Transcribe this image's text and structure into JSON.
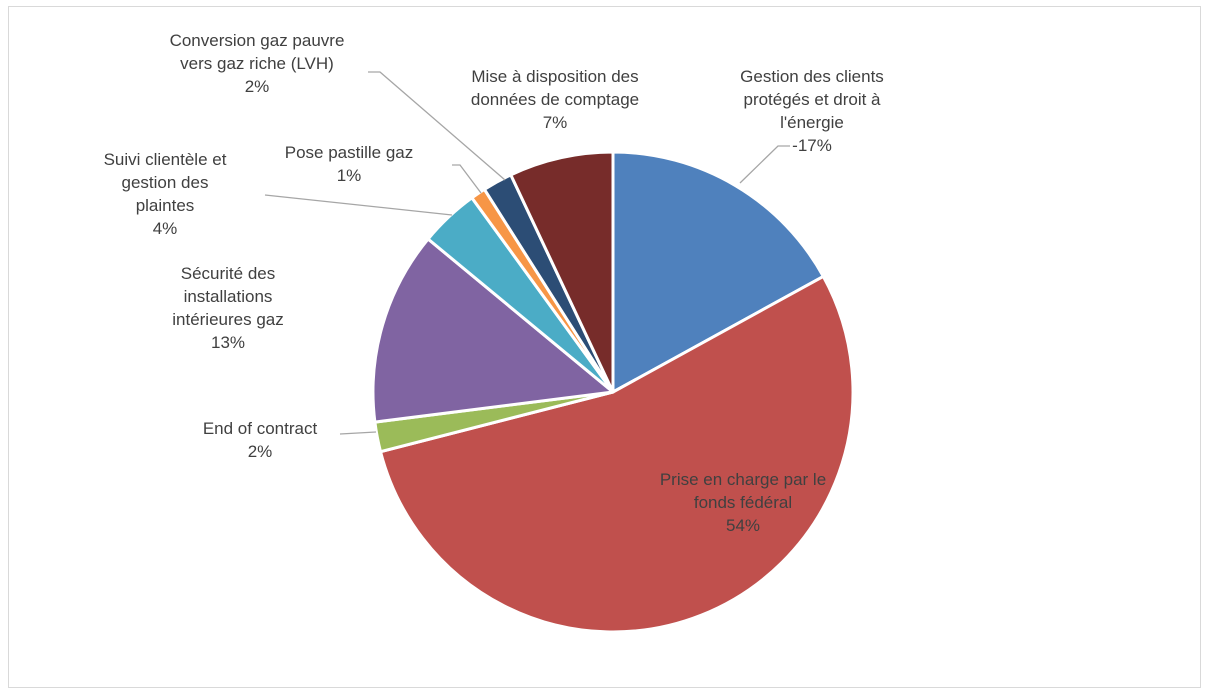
{
  "chart_data": {
    "type": "pie",
    "title": "",
    "start_angle_deg": 0,
    "direction": "clockwise",
    "slices": [
      {
        "name": "Gestion des clients protégés et droit à l'énergie",
        "value": 17,
        "label_lines": [
          "Gestion des clients",
          "protégés et droit à",
          "l'énergie",
          "-17%"
        ],
        "color": "#4f81bd"
      },
      {
        "name": "Prise en charge par le fonds fédéral",
        "value": 54,
        "label_lines": [
          "Prise en charge par le",
          "fonds fédéral",
          "54%"
        ],
        "color": "#c0504d"
      },
      {
        "name": "End of contract",
        "value": 2,
        "label_lines": [
          "End of contract",
          "2%"
        ],
        "color": "#9bbb59"
      },
      {
        "name": "Sécurité des installations intérieures gaz",
        "value": 13,
        "label_lines": [
          "Sécurité des",
          "installations",
          "intérieures gaz",
          "13%"
        ],
        "color": "#8064a2"
      },
      {
        "name": "Suivi clientèle et gestion des plaintes",
        "value": 4,
        "label_lines": [
          "Suivi clientèle et",
          "gestion des",
          "plaintes",
          "4%"
        ],
        "color": "#4bacc6"
      },
      {
        "name": "Pose pastille gaz",
        "value": 1,
        "label_lines": [
          "Pose pastille gaz",
          "1%"
        ],
        "color": "#f79646"
      },
      {
        "name": "Conversion gaz pauvre vers gaz riche (LVH)",
        "value": 2,
        "label_lines": [
          "Conversion gaz pauvre",
          "vers gaz riche (LVH)",
          "2%"
        ],
        "color": "#2c4d75"
      },
      {
        "name": "Mise à disposition des données de comptage",
        "value": 7,
        "label_lines": [
          "Mise à disposition des",
          "données de comptage",
          "7%"
        ],
        "color": "#772c2a"
      }
    ]
  }
}
